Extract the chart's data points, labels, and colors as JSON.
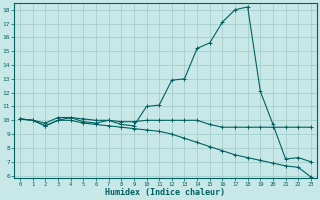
{
  "xlabel": "Humidex (Indice chaleur)",
  "ylabel": "",
  "bg_color": "#c8e8e8",
  "line_color": "#006060",
  "grid_color": "#a0c8c8",
  "xlim": [
    -0.5,
    23.5
  ],
  "ylim": [
    5.8,
    18.5
  ],
  "yticks": [
    6,
    7,
    8,
    9,
    10,
    11,
    12,
    13,
    14,
    15,
    16,
    17,
    18
  ],
  "xticks": [
    0,
    1,
    2,
    3,
    4,
    5,
    6,
    7,
    8,
    9,
    10,
    11,
    12,
    13,
    14,
    15,
    16,
    17,
    18,
    19,
    20,
    21,
    22,
    23
  ],
  "line1_x": [
    0,
    1,
    2,
    3,
    4,
    5,
    6,
    7,
    8,
    9,
    10,
    11,
    12,
    13,
    14,
    15,
    16,
    17,
    18,
    19,
    20,
    21,
    22,
    23
  ],
  "line1_y": [
    10.1,
    10.0,
    9.8,
    10.2,
    10.2,
    10.1,
    10.0,
    10.0,
    9.9,
    9.9,
    10.0,
    10.0,
    10.0,
    10.0,
    10.0,
    9.7,
    9.5,
    9.5,
    9.5,
    9.5,
    9.5,
    9.5,
    9.5,
    9.5
  ],
  "line2_x": [
    0,
    1,
    2,
    3,
    4,
    5,
    6,
    7,
    8,
    9,
    10,
    11,
    12,
    13,
    14,
    15,
    16,
    17,
    18,
    19,
    20,
    21,
    22,
    23
  ],
  "line2_y": [
    10.1,
    10.0,
    9.6,
    10.0,
    10.0,
    9.8,
    9.7,
    9.6,
    9.5,
    9.4,
    9.3,
    9.2,
    9.0,
    8.7,
    8.4,
    8.1,
    7.8,
    7.5,
    7.3,
    7.1,
    6.9,
    6.7,
    6.6,
    5.9
  ],
  "line3_x": [
    0,
    1,
    2,
    3,
    4,
    5,
    6,
    7,
    8,
    9,
    10,
    11,
    12,
    13,
    14,
    15,
    16,
    17,
    18,
    19,
    20,
    21,
    22,
    23
  ],
  "line3_y": [
    10.1,
    10.0,
    9.6,
    10.0,
    10.2,
    9.9,
    9.8,
    10.0,
    9.7,
    9.6,
    11.0,
    11.1,
    12.9,
    13.0,
    15.2,
    15.6,
    17.1,
    18.0,
    18.2,
    12.1,
    9.7,
    7.2,
    7.3,
    7.0
  ],
  "tick_fontsize": 5,
  "xlabel_fontsize": 6
}
